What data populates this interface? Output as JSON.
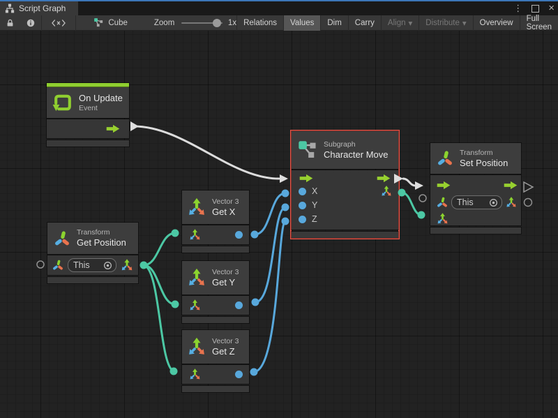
{
  "titlebar": {
    "tab_title": "Script Graph",
    "more_glyph": "⋮",
    "close_glyph": "×"
  },
  "toolbar": {
    "object_name": "Cube",
    "zoom_label": "Zoom",
    "zoom_value": "1x",
    "buttons": [
      {
        "label": "Relations",
        "state": "normal"
      },
      {
        "label": "Values",
        "state": "selected"
      },
      {
        "label": "Dim",
        "state": "normal"
      },
      {
        "label": "Carry",
        "state": "normal"
      },
      {
        "label": "Align",
        "state": "disabled",
        "caret": "▾"
      },
      {
        "label": "Distribute",
        "state": "disabled",
        "caret": "▾"
      },
      {
        "label": "Overview",
        "state": "normal"
      },
      {
        "label": "Full Screen",
        "state": "normal"
      }
    ]
  },
  "nodes": {
    "on_update": {
      "title": "On Update",
      "subtitle": "Event"
    },
    "get_position": {
      "category": "Transform",
      "title": "Get Position",
      "target_value": "This"
    },
    "get_x": {
      "category": "Vector 3",
      "title": "Get X"
    },
    "get_y": {
      "category": "Vector 3",
      "title": "Get Y"
    },
    "get_z": {
      "category": "Vector 3",
      "title": "Get Z"
    },
    "character_move": {
      "category": "Subgraph",
      "title": "Character Move",
      "inputs": [
        "X",
        "Y",
        "Z"
      ]
    },
    "set_position": {
      "category": "Transform",
      "title": "Set Position",
      "target_value": "This"
    }
  },
  "colors": {
    "flow_green": "#97d02f",
    "wire_white": "#dcdcdc",
    "wire_teal": "#4cc8a4",
    "wire_blue": "#58a8dc",
    "selection_red": "#e8564a",
    "accent_green": "#8fce30"
  }
}
